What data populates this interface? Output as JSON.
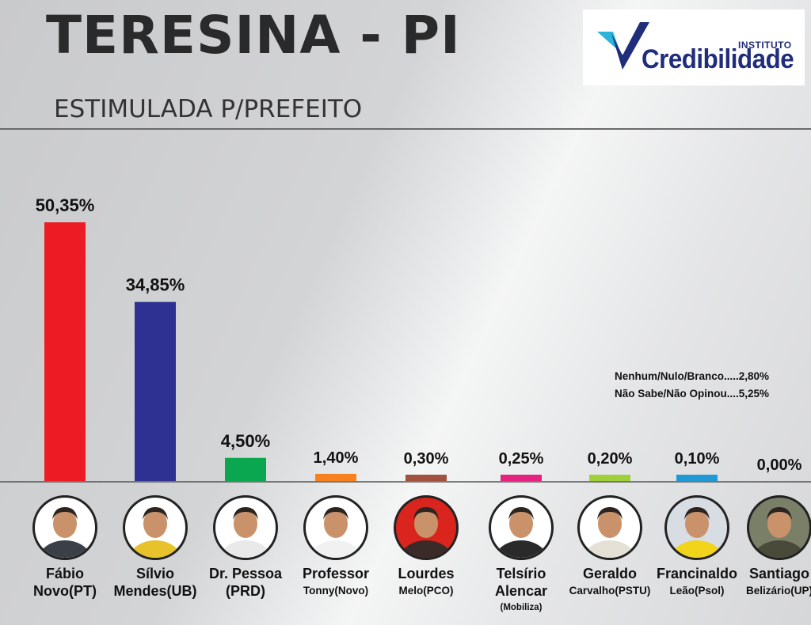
{
  "title": "TERESINA - PI",
  "subtitle": "ESTIMULADA P/PREFEITO",
  "logo": {
    "small": "INSTITUTO",
    "big": "Credibilidade"
  },
  "notes": [
    "Nenhum/Nulo/Branco.....2,80%",
    "Não Sabe/Não Opinou....5,25%"
  ],
  "candidates": [
    {
      "line1": "Fábio",
      "line2": "Novo(PT)",
      "line3": "",
      "bg": "#ffffff",
      "shirt": "#3a3f48"
    },
    {
      "line1": "Sílvio",
      "line2": "Mendes(UB)",
      "line3": "",
      "bg": "#ffffff",
      "shirt": "#e8c22a"
    },
    {
      "line1": "Dr. Pessoa",
      "line2": "(PRD)",
      "line3": "",
      "bg": "#ffffff",
      "shirt": "#e9e9e9"
    },
    {
      "line1": "Professor",
      "line2": "Tonny(Novo)",
      "line3": "",
      "bg": "#ffffff",
      "shirt": "#f1f1f1"
    },
    {
      "line1": "Lourdes",
      "line2": "Melo(PCO)",
      "line3": "",
      "bg": "#d9251d",
      "shirt": "#3a2a28"
    },
    {
      "line1": "Telsírio",
      "line2": "Alencar",
      "line3": "(Mobiliza)",
      "bg": "#ffffff",
      "shirt": "#2a2a2a"
    },
    {
      "line1": "Geraldo",
      "line2": "Carvalho(PSTU)",
      "line3": "",
      "bg": "#ffffff",
      "shirt": "#e6e1d6"
    },
    {
      "line1": "Francinaldo",
      "line2": "Leão(Psol)",
      "line3": "",
      "bg": "#d8dde4",
      "shirt": "#f2d41a"
    },
    {
      "line1": "Santiago",
      "line2": "Belizário(UP)",
      "line3": "",
      "bg": "#7a7f68",
      "shirt": "#4a4a3a"
    }
  ],
  "chart_data": {
    "type": "bar",
    "categories": [
      "Fábio Novo(PT)",
      "Sílvio Mendes(UB)",
      "Dr. Pessoa (PRD)",
      "Professor Tonny(Novo)",
      "Lourdes Melo(PCO)",
      "Telsírio Alencar (Mobiliza)",
      "Geraldo Carvalho(PSTU)",
      "Francinaldo Leão(Psol)",
      "Santiago Belizário(UP)"
    ],
    "values": [
      50.35,
      34.85,
      4.5,
      1.4,
      0.3,
      0.25,
      0.2,
      0.1,
      0.0
    ],
    "value_labels": [
      "50,35%",
      "34,85%",
      "4,50%",
      "1,40%",
      "0,30%",
      "0,25%",
      "0,20%",
      "0,10%",
      "0,00%"
    ],
    "colors": [
      "#ed1c24",
      "#2e3192",
      "#0aa650",
      "#f7811f",
      "#a0523f",
      "#e3237f",
      "#9fcf3a",
      "#1f9ad6",
      "#888888"
    ],
    "ylim": [
      0,
      55
    ],
    "grid": false,
    "legend": "none"
  }
}
